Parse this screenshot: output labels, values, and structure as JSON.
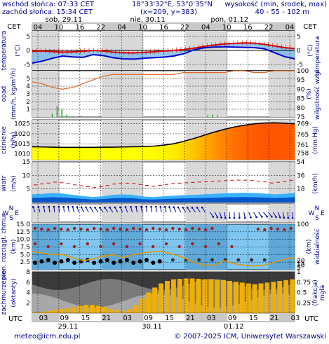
{
  "header": {
    "sunrise": "wschód słońca: 07:33 CET",
    "sunset": "zachód słońca: 15:34 CET",
    "coords": "18°33'32\"E, 53°0'35\"N",
    "grid": "(x=209, y=383)",
    "elevation_label": "wysokość (min, środek, max)",
    "elevation_values": "40 - 55 - 102 m"
  },
  "timezones": {
    "top_left": "CET",
    "top_right": "CET",
    "bottom_left": "UTC",
    "bottom_right": "UTC"
  },
  "top_axis": {
    "hours": [
      "04",
      "10",
      "16",
      "22",
      "04",
      "10",
      "16",
      "22",
      "04",
      "10",
      "16",
      "22",
      "04"
    ],
    "days": [
      "sob, 29.11",
      "nie, 30.11",
      "pon, 01.12"
    ]
  },
  "bottom_axis": {
    "hours": [
      "03",
      "09",
      "15",
      "21",
      "03",
      "09",
      "15",
      "21",
      "03",
      "09",
      "15",
      "21",
      "03"
    ],
    "days": [
      "29.11",
      "30.11",
      "01.12"
    ]
  },
  "footer": {
    "email": "meteo@icm.edu.pl",
    "copyright": "© 2007-2025 ICM, Uniwersytet Warszawski"
  },
  "colors": {
    "navy": "#00008b",
    "temp_red": "#cc0000",
    "temp_blue": "#0000cc",
    "sky": "#3fa9e8",
    "rh": "#d86a2a",
    "pressure_yellow": "#ffff00",
    "pressure_orange": "#ff6a00"
  },
  "chart_data": [
    {
      "type": "line",
      "name": "temperature",
      "ylabel": "temperatura",
      "ylabel_right": "temperatura",
      "unit_left": "(°C)",
      "unit_right": "(°C)",
      "ylim": [
        -7,
        7
      ],
      "yticks": [
        -5,
        0,
        5
      ],
      "series": [
        {
          "values": [
            -0.3,
            -0.2,
            -0.4,
            -0.6,
            -0.5,
            -0.3,
            0.0,
            -0.2,
            -0.6,
            -0.8,
            -0.9,
            -0.7,
            -0.5,
            -0.2,
            0.0,
            0.3,
            0.8,
            1.4,
            1.9,
            2.3,
            2.5,
            2.7,
            2.6,
            2.2,
            1.6,
            1.0,
            0.7
          ]
        },
        {
          "values": [
            -4.5,
            -3.8,
            -2.8,
            -2.0,
            -2.3,
            -2.5,
            -1.5,
            -1.8,
            -2.6,
            -3.0,
            -3.1,
            -2.8,
            -2.6,
            -2.4,
            -2.0,
            -1.2,
            0.2,
            0.9,
            1.2,
            1.3,
            1.2,
            1.1,
            1.0,
            0.6,
            -0.8,
            -2.2,
            -3.0
          ]
        }
      ]
    },
    {
      "type": "line",
      "name": "precipitation_humidity",
      "ylabel": "opad",
      "ylabel_unit": "(mm/h, kg/m²/h)",
      "ylabel_right": "wilgotność wzgl.",
      "unit_right": "(%)",
      "ylim": [
        0,
        6
      ],
      "yticks": [
        1,
        2,
        3,
        4,
        5
      ],
      "yticks_right": [
        75,
        80,
        85,
        90,
        95,
        100
      ],
      "precip": [
        0,
        0,
        0,
        0,
        0.4,
        1.4,
        1.0,
        0.3,
        0,
        0,
        0.15,
        0,
        0,
        0,
        0,
        0,
        0,
        0,
        0,
        0,
        0,
        0,
        0,
        0,
        0,
        0,
        0,
        0,
        0,
        0,
        0,
        0,
        0,
        0,
        0,
        0,
        0.2,
        0.3,
        0.2,
        0,
        0,
        0,
        0,
        0,
        0,
        0,
        0,
        0,
        0,
        0,
        0,
        0,
        0,
        0
      ],
      "humidity": [
        94,
        93,
        91,
        90,
        91,
        93,
        95,
        97,
        98,
        98,
        98,
        98,
        98,
        98,
        98,
        99,
        99,
        99,
        99,
        99,
        100,
        100,
        99,
        99,
        100,
        100,
        100
      ]
    },
    {
      "type": "area",
      "name": "pressure",
      "ylabel": "ciśnienie",
      "ylabel_unit": "(hPa)",
      "unit_right": "(mm Hg)",
      "ylim": [
        1007,
        1027
      ],
      "yticks": [
        1010,
        1015,
        1020,
        1025
      ],
      "yticks_right": [
        758,
        761,
        765,
        769
      ],
      "values": [
        1013.5,
        1013.4,
        1013.3,
        1013.2,
        1013.2,
        1013.2,
        1013.2,
        1013.3,
        1013.3,
        1013.4,
        1013.5,
        1013.6,
        1013.8,
        1014.3,
        1015.0,
        1016.2,
        1017.6,
        1019.2,
        1020.8,
        1022.2,
        1023.4,
        1024.3,
        1025.0,
        1025.4,
        1025.5,
        1025.3,
        1025.0
      ]
    },
    {
      "type": "area",
      "name": "wind",
      "ylabel": "wiatr",
      "ylabel_unit": "(m/s)",
      "unit_right": "(km/h)",
      "ylim": [
        0,
        15
      ],
      "yticks": [
        5,
        10,
        15
      ],
      "yticks_right": [
        18,
        36,
        54
      ],
      "speed": [
        3.0,
        3.2,
        3.5,
        3.3,
        2.8,
        2.4,
        2.0,
        2.3,
        2.8,
        3.0,
        2.8,
        2.2,
        2.0,
        2.3,
        2.5,
        2.7,
        2.8,
        3.0,
        3.2,
        3.4,
        3.5,
        3.6,
        3.5,
        3.3,
        3.0,
        3.2,
        3.5
      ],
      "gusts": [
        6.5,
        7.0,
        7.5,
        7.2,
        6.5,
        6.0,
        5.5,
        6.0,
        6.8,
        7.2,
        7.0,
        6.5,
        6.0,
        6.5,
        7.0,
        7.2,
        7.4,
        7.6,
        7.8,
        8.0,
        8.2,
        8.3,
        8.1,
        7.8,
        7.2,
        7.6,
        8.2
      ]
    },
    {
      "type": "scatter",
      "name": "wind_direction",
      "ylabel": "W S N E"
    },
    {
      "type": "scatter",
      "name": "cloud_base_visibility",
      "ylabel": "pion. rozciągł. chmur",
      "ylabel2": "(km)",
      "ylabel_right": "widzialność",
      "unit_right": "(km)",
      "ylim": [
        0,
        15
      ],
      "yticks": [
        2.5,
        5.0,
        7.5,
        10.0,
        12.5,
        15.0
      ],
      "yticks_right": [
        5,
        10,
        15,
        20,
        100
      ],
      "visibility": [
        6,
        5.5,
        5,
        5,
        4,
        3,
        3.5,
        4.5,
        5,
        4,
        5,
        5.5,
        6,
        6,
        5,
        4,
        2.5,
        1.5,
        1.5,
        3,
        2,
        1.5,
        1.2,
        1.5,
        2.5,
        3.5,
        4
      ]
    },
    {
      "type": "bar",
      "name": "cloud_cover_fog",
      "ylabel": "zachmurzenie",
      "ylabel_unit": "(oktanty)",
      "ylabel_right": "(frakcja)",
      "ylabel_right2": "mgła",
      "ylim": [
        0,
        8
      ],
      "yticks": [
        2,
        4,
        6,
        8
      ],
      "yticks_right": [
        0.25,
        0.5,
        0.75,
        1
      ],
      "fog": [
        0.02,
        0.03,
        0.05,
        0.08,
        0.1,
        0.12,
        0.15,
        0.18,
        0.2,
        0.2,
        0.18,
        0.15,
        0.1,
        0.08,
        0.05,
        0.1,
        0.2,
        0.35,
        0.5,
        0.62,
        0.72,
        0.78,
        0.82,
        0.83,
        0.84,
        0.84,
        0.83,
        0.82,
        0.82,
        0.8,
        0.8,
        0.78,
        0.76,
        0.74,
        0.72,
        0.7,
        0.72,
        0.74,
        0.76,
        0.78,
        0.8,
        0.82
      ]
    }
  ]
}
